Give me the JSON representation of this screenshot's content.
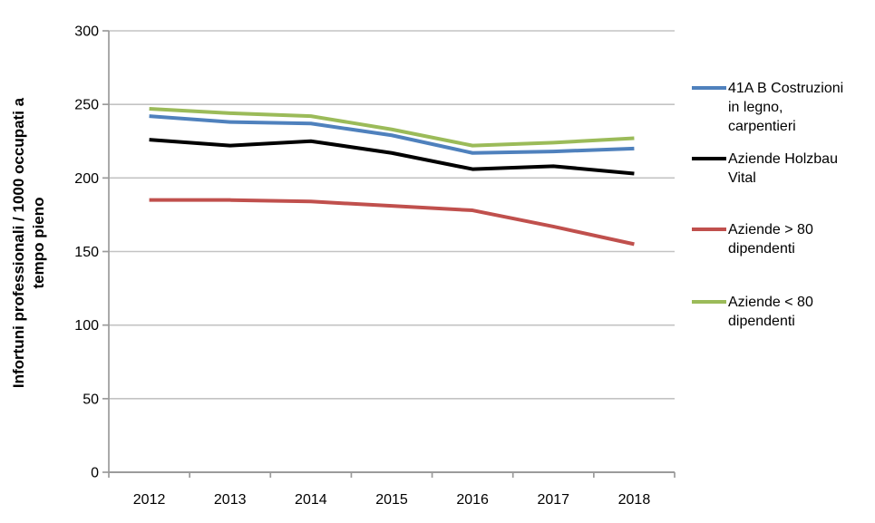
{
  "page": {
    "background": "#ffffff"
  },
  "chart_data": {
    "type": "line",
    "title": "",
    "xlabel": "",
    "ylabel": "Infortuni professionali / 1000 occupati a\ntempo pieno",
    "x": [
      "2012",
      "2013",
      "2014",
      "2015",
      "2016",
      "2017",
      "2018"
    ],
    "ylim": [
      0,
      300
    ],
    "ytick_step": 50,
    "yticks": [
      0,
      50,
      100,
      150,
      200,
      250,
      300
    ],
    "grid": "horizontal-on",
    "legend_position": "right",
    "gridline_color": "#c3c3c3",
    "axis_color": "#9b9b9b",
    "line_width": 4,
    "series": [
      {
        "name": "41A B Costruzioni in legno, carpentieri",
        "legend_label": "41A B Costruzioni\nin legno,\ncarpentieri",
        "color": "#4F81BD",
        "values": [
          242,
          238,
          237,
          229,
          217,
          218,
          220
        ]
      },
      {
        "name": "Aziende Holzbau Vital",
        "legend_label": "Aziende Holzbau\nVital",
        "color": "#000000",
        "values": [
          226,
          222,
          225,
          217,
          206,
          208,
          203
        ]
      },
      {
        "name": "Aziende > 80 dipendenti",
        "legend_label": "Aziende > 80\ndipendenti",
        "color": "#C0504D",
        "values": [
          185,
          185,
          184,
          181,
          178,
          167,
          155
        ]
      },
      {
        "name": "Aziende < 80 dipendenti",
        "legend_label": "Aziende < 80\ndipendenti",
        "color": "#9BBB59",
        "values": [
          247,
          244,
          242,
          233,
          222,
          224,
          227
        ]
      }
    ]
  }
}
